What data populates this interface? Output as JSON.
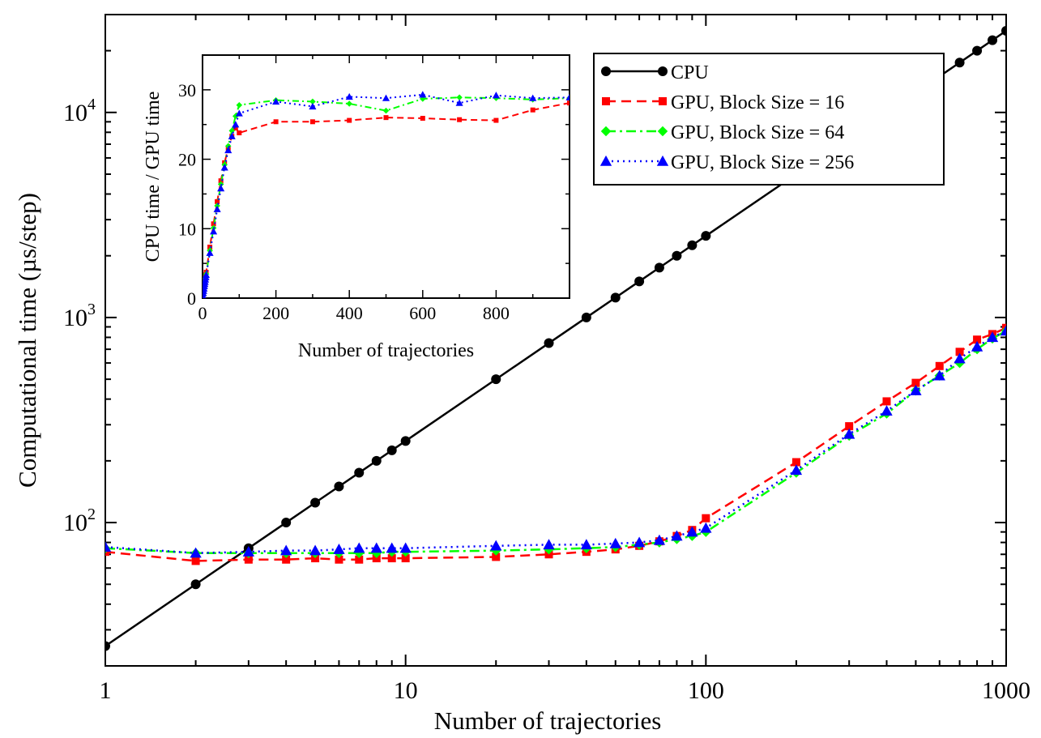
{
  "chart_data": [
    {
      "type": "line",
      "xscale": "log",
      "yscale": "log",
      "xlabel": "Number of trajectories",
      "ylabel": "Computational time (µs/step)",
      "xlim": [
        1,
        1000
      ],
      "ylim": [
        20,
        30000
      ],
      "x_ticks": [
        1,
        10,
        100,
        1000
      ],
      "x_tick_labels": [
        "1",
        "10",
        "100",
        "1000"
      ],
      "y_ticks": [
        100,
        1000,
        10000
      ],
      "y_tick_labels": [
        {
          "base": "10",
          "exp": "2"
        },
        {
          "base": "10",
          "exp": "3"
        },
        {
          "base": "10",
          "exp": "4"
        }
      ],
      "grid": false,
      "legend_position": "top-right",
      "series": [
        {
          "name": "CPU",
          "color": "#000000",
          "dash": "solid",
          "marker": "circle",
          "x": [
            1,
            2,
            3,
            4,
            5,
            6,
            7,
            8,
            9,
            10,
            20,
            30,
            40,
            50,
            60,
            70,
            80,
            90,
            100,
            200,
            300,
            400,
            500,
            600,
            700,
            800,
            900,
            1000
          ],
          "y": [
            25,
            50,
            75,
            100,
            125,
            150,
            175,
            200,
            225,
            250,
            500,
            750,
            1000,
            1250,
            1500,
            1750,
            2000,
            2250,
            2500,
            5000,
            7500,
            10000,
            12500,
            15000,
            17500,
            20000,
            22500,
            25000
          ]
        },
        {
          "name": "GPU, Block Size = 16",
          "color": "#ff0000",
          "dash": "dashed",
          "marker": "square",
          "x": [
            1,
            2,
            3,
            4,
            5,
            6,
            7,
            8,
            9,
            10,
            20,
            30,
            40,
            50,
            60,
            70,
            80,
            90,
            100,
            200,
            300,
            400,
            500,
            600,
            700,
            800,
            900,
            1000
          ],
          "y": [
            72,
            65,
            66,
            66,
            67,
            66,
            66,
            67,
            67,
            67,
            68,
            70,
            72,
            74,
            77,
            81,
            86,
            92,
            105,
            197,
            295,
            390,
            480,
            580,
            680,
            780,
            830,
            890
          ]
        },
        {
          "name": "GPU, Block Size = 64",
          "color": "#00ff00",
          "dash": "dashdot",
          "marker": "diamond",
          "x": [
            1,
            2,
            3,
            4,
            5,
            6,
            7,
            8,
            9,
            10,
            20,
            30,
            40,
            50,
            60,
            70,
            80,
            90,
            100,
            200,
            300,
            400,
            500,
            600,
            700,
            800,
            900,
            1000
          ],
          "y": [
            75,
            71,
            71,
            71,
            71,
            71,
            71,
            71,
            72,
            72,
            73,
            74,
            75,
            76,
            78,
            80,
            83,
            86,
            90,
            175,
            265,
            340,
            440,
            520,
            600,
            700,
            790,
            860
          ]
        },
        {
          "name": "GPU, Block Size = 256",
          "color": "#0000ff",
          "dash": "dotted",
          "marker": "triangle",
          "x": [
            1,
            2,
            3,
            4,
            5,
            6,
            7,
            8,
            9,
            10,
            20,
            30,
            40,
            50,
            60,
            70,
            80,
            90,
            100,
            200,
            300,
            400,
            500,
            600,
            700,
            800,
            900,
            1000
          ],
          "y": [
            76,
            71,
            72,
            73,
            73,
            74,
            75,
            75,
            75,
            75,
            77,
            78,
            78,
            79,
            80,
            82,
            86,
            90,
            94,
            180,
            270,
            350,
            440,
            520,
            630,
            720,
            800,
            860
          ]
        }
      ]
    },
    {
      "type": "line",
      "role": "inset",
      "xscale": "linear",
      "yscale": "linear",
      "xlabel": "Number of trajectories",
      "ylabel": "CPU time / GPU time",
      "xlim": [
        0,
        1000
      ],
      "ylim": [
        0,
        35
      ],
      "x_ticks": [
        0,
        200,
        400,
        600,
        800
      ],
      "y_ticks": [
        0,
        10,
        20,
        30
      ],
      "grid": false,
      "series": [
        {
          "name": "GPU, Block Size = 16",
          "color": "#ff0000",
          "dash": "dashed",
          "marker": "square",
          "x": [
            1,
            2,
            3,
            4,
            5,
            6,
            7,
            8,
            9,
            10,
            20,
            30,
            40,
            50,
            60,
            70,
            80,
            90,
            100,
            200,
            300,
            400,
            500,
            600,
            700,
            800,
            900,
            1000
          ],
          "y": [
            0.35,
            0.77,
            1.14,
            1.52,
            1.87,
            2.27,
            2.65,
            2.99,
            3.36,
            3.73,
            7.35,
            10.7,
            13.9,
            16.9,
            19.5,
            21.6,
            23.3,
            24.5,
            23.8,
            25.4,
            25.4,
            25.6,
            26.0,
            25.9,
            25.7,
            25.6,
            27.1,
            28.1
          ]
        },
        {
          "name": "GPU, Block Size = 64",
          "color": "#00ff00",
          "dash": "dashdot",
          "marker": "diamond",
          "x": [
            1,
            2,
            3,
            4,
            5,
            6,
            7,
            8,
            9,
            10,
            20,
            30,
            40,
            50,
            60,
            70,
            80,
            90,
            100,
            200,
            300,
            400,
            500,
            600,
            700,
            800,
            900,
            1000
          ],
          "y": [
            0.33,
            0.7,
            1.06,
            1.41,
            1.76,
            2.11,
            2.46,
            2.82,
            3.13,
            3.47,
            6.85,
            10.1,
            13.3,
            16.4,
            19.2,
            21.9,
            24.1,
            26.2,
            27.8,
            28.5,
            28.3,
            28.0,
            27.0,
            28.7,
            28.9,
            28.8,
            28.6,
            28.8
          ]
        },
        {
          "name": "GPU, Block Size = 256",
          "color": "#0000ff",
          "dash": "dotted",
          "marker": "triangle",
          "x": [
            1,
            2,
            3,
            4,
            5,
            6,
            7,
            8,
            9,
            10,
            20,
            30,
            40,
            50,
            60,
            70,
            80,
            90,
            100,
            200,
            300,
            400,
            500,
            600,
            700,
            800,
            900,
            1000
          ],
          "y": [
            0.33,
            0.7,
            1.04,
            1.37,
            1.71,
            2.03,
            2.33,
            2.67,
            3.0,
            3.33,
            6.5,
            9.6,
            12.8,
            15.8,
            18.8,
            21.3,
            23.3,
            25.0,
            26.6,
            28.3,
            27.6,
            29.0,
            28.8,
            29.3,
            28.1,
            29.2,
            28.8,
            28.9
          ]
        }
      ]
    }
  ]
}
